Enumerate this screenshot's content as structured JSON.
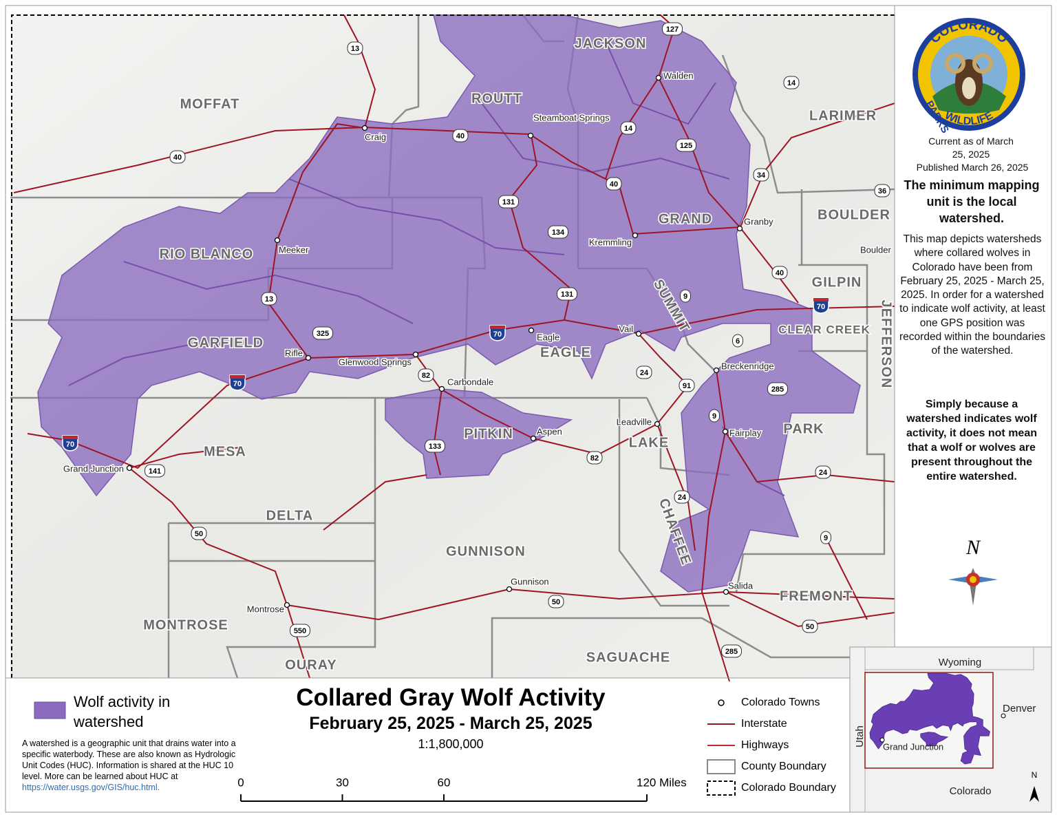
{
  "map": {
    "counties": [
      "MOFFAT",
      "ROUTT",
      "JACKSON",
      "LARIMER",
      "BOULDER",
      "GRAND",
      "RIO BLANCO",
      "GARFIELD",
      "EAGLE",
      "SUMMIT",
      "GILPIN",
      "CLEAR CREEK",
      "JEFFERSON",
      "PITKIN",
      "LAKE",
      "PARK",
      "MESA",
      "DELTA",
      "GUNNISON",
      "CHAFFEE",
      "FREMONT",
      "MONTROSE",
      "SAGUACHE",
      "OURAY"
    ],
    "towns": [
      "Craig",
      "Steamboat Springs",
      "Walden",
      "Meeker",
      "Granby",
      "Kremmling",
      "Boulder",
      "Rifle",
      "Eagle",
      "Vail",
      "Glenwood Springs",
      "Carbondale",
      "Breckenridge",
      "Leadville",
      "Fairplay",
      "Aspen",
      "Grand Junction",
      "Gunnison",
      "Montrose",
      "Salida"
    ],
    "interstate_shields": [
      "70",
      "70",
      "70",
      "70"
    ],
    "highway_shields": [
      "13",
      "127",
      "14",
      "40",
      "14",
      "125",
      "40",
      "34",
      "36",
      "40",
      "131",
      "134",
      "13",
      "9",
      "131",
      "40",
      "325",
      "6",
      "82",
      "24",
      "91",
      "285",
      "9",
      "133",
      "141",
      "82",
      "24",
      "24",
      "9",
      "50",
      "50",
      "550",
      "50",
      "285"
    ]
  },
  "logo": {
    "top": "COLORADO",
    "left": "PARKS",
    "bottom": "WILDLIFE"
  },
  "side_panel": {
    "current": "Current as of March 25, 2025",
    "published": "Published March 26, 2025",
    "note_1": "The minimum mapping unit is the local watershed.",
    "note_2": "This map depicts watersheds where collared wolves in Colorado have been from February 25, 2025 - March 25, 2025. In order for a watershed to indicate wolf activity, at least one GPS position was recorded within the boundaries of the watershed.",
    "note_3": "Simply because a watershed indicates wolf activity, it does not mean that a wolf or wolves are present throughout the entire watershed.",
    "north": "N"
  },
  "legend": {
    "wolf_activity": "Wolf activity in watershed",
    "description": "A watershed is a geographic unit that drains water into a specific waterbody. These are also known as Hydrologic Unit Codes (HUC). Information is shared at the HUC 10 level. More can be learned about HUC at",
    "link": "https://water.usgs.gov/GIS/huc.html.",
    "items": [
      "Colorado Towns",
      "Interstate",
      "Highways",
      "County Boundary",
      "Colorado Boundary"
    ]
  },
  "title": "Collared Gray Wolf Activity",
  "subtitle": "February 25, 2025 - March 25, 2025",
  "scale": "1:1,800,000",
  "scale_bar": {
    "ticks": [
      0,
      30,
      60,
      {
        "value": 120,
        "label": "120 Miles"
      }
    ]
  },
  "inset": {
    "labels": [
      "Wyoming",
      "Utah",
      "Denver",
      "Grand Junction",
      "Colorado"
    ],
    "north": "N"
  }
}
